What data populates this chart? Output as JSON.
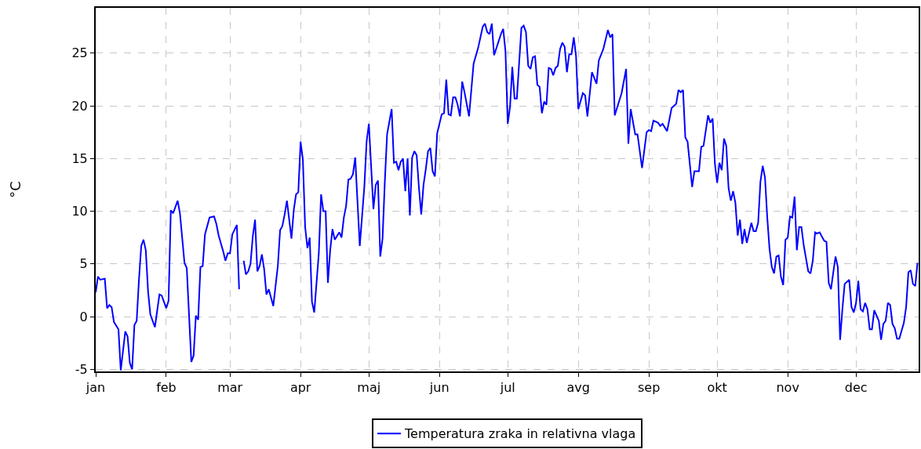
{
  "chart_data": {
    "type": "line",
    "ylabel": "°C",
    "x": [
      "--01-01",
      "--01-02",
      "--01-03",
      "--01-05",
      "--01-06",
      "--01-07",
      "--01-08",
      "--01-09",
      "--01-11",
      "--01-12",
      "--01-14",
      "--01-15",
      "--01-16",
      "--01-17",
      "--01-18",
      "--01-19",
      "--01-20",
      "--01-21",
      "--01-22",
      "--01-23",
      "--01-24",
      "--01-25",
      "--01-27",
      "--01-29",
      "--01-30",
      "--02-01",
      "--02-02",
      "--02-03",
      "--02-04",
      "--02-06",
      "--02-07",
      "--02-09",
      "--02-10",
      "--02-12",
      "--02-13",
      "--02-14",
      "--02-15",
      "--02-16",
      "--02-17",
      "--02-18",
      "--02-20",
      "--02-22",
      "--02-23",
      "--02-24",
      "--02-26",
      "--02-27",
      "--02-28",
      "--03-01",
      "--03-02",
      "--03-04",
      "--03-05",
      "--03-06",
      "--03-07",
      "--03-08",
      "--03-09",
      "--03-10",
      "--03-11",
      "--03-12",
      "--03-13",
      "--03-14",
      "--03-15",
      "--03-16",
      "--03-17",
      "--03-18",
      "--03-20",
      "--03-22",
      "--03-23",
      "--03-24",
      "--03-25",
      "--03-26",
      "--03-28",
      "--03-29",
      "--03-30",
      "--03-31",
      "--04-01",
      "--04-02",
      "--04-03",
      "--04-04",
      "--04-05",
      "--04-06",
      "--04-07",
      "--04-09",
      "--04-10",
      "--04-11",
      "--04-12",
      "--04-13",
      "--04-14",
      "--04-15",
      "--04-16",
      "--04-18",
      "--04-19",
      "--04-20",
      "--04-21",
      "--04-22",
      "--04-23",
      "--04-24",
      "--04-25",
      "--04-27",
      "--04-29",
      "--04-30",
      "--05-01",
      "--05-02",
      "--05-03",
      "--05-04",
      "--05-05",
      "--05-06",
      "--05-07",
      "--05-08",
      "--05-09",
      "--05-11",
      "--05-12",
      "--05-13",
      "--05-14",
      "--05-15",
      "--05-16",
      "--05-17",
      "--05-18",
      "--05-19",
      "--05-20",
      "--05-21",
      "--05-22",
      "--05-23",
      "--05-24",
      "--05-25",
      "--05-26",
      "--05-27",
      "--05-28",
      "--05-29",
      "--05-30",
      "--05-31",
      "--06-02",
      "--06-03",
      "--06-04",
      "--06-05",
      "--06-06",
      "--06-07",
      "--06-08",
      "--06-09",
      "--06-10",
      "--06-11",
      "--06-12",
      "--06-14",
      "--06-16",
      "--06-18",
      "--06-20",
      "--06-21",
      "--06-22",
      "--06-23",
      "--06-24",
      "--06-25",
      "--06-28",
      "--06-29",
      "--06-30",
      "--07-01",
      "--07-02",
      "--07-03",
      "--07-04",
      "--07-05",
      "--07-07",
      "--07-08",
      "--07-09",
      "--07-10",
      "--07-11",
      "--07-12",
      "--07-13",
      "--07-14",
      "--07-15",
      "--07-16",
      "--07-17",
      "--07-18",
      "--07-19",
      "--07-20",
      "--07-21",
      "--07-22",
      "--07-23",
      "--07-24",
      "--07-25",
      "--07-26",
      "--07-27",
      "--07-28",
      "--07-29",
      "--07-30",
      "--07-31",
      "--08-01",
      "--08-03",
      "--08-04",
      "--08-05",
      "--08-07",
      "--08-09",
      "--08-10",
      "--08-12",
      "--08-14",
      "--08-15",
      "--08-16",
      "--08-17",
      "--08-20",
      "--08-22",
      "--08-23",
      "--08-24",
      "--08-26",
      "--08-27",
      "--08-29",
      "--08-31",
      "--09-01",
      "--09-02",
      "--09-03",
      "--09-05",
      "--09-06",
      "--09-07",
      "--09-09",
      "--09-11",
      "--09-13",
      "--09-14",
      "--09-15",
      "--09-16",
      "--09-17",
      "--09-18",
      "--09-20",
      "--09-21",
      "--09-23",
      "--09-24",
      "--09-25",
      "--09-27",
      "--09-28",
      "--09-29",
      "--09-30",
      "--10-01",
      "--10-02",
      "--10-03",
      "--10-04",
      "--10-05",
      "--10-06",
      "--10-07",
      "--10-08",
      "--10-09",
      "--10-10",
      "--10-11",
      "--10-12",
      "--10-13",
      "--10-14",
      "--10-16",
      "--10-17",
      "--10-18",
      "--10-19",
      "--10-20",
      "--10-21",
      "--10-22",
      "--10-23",
      "--10-24",
      "--10-25",
      "--10-26",
      "--10-27",
      "--10-28",
      "--10-29",
      "--10-30",
      "--10-31",
      "--11-01",
      "--11-02",
      "--11-03",
      "--11-04",
      "--11-05",
      "--11-06",
      "--11-07",
      "--11-08",
      "--11-10",
      "--11-11",
      "--11-12",
      "--11-13",
      "--11-14",
      "--11-15",
      "--11-17",
      "--11-18",
      "--11-19",
      "--11-20",
      "--11-21",
      "--11-22",
      "--11-23",
      "--11-24",
      "--11-25",
      "--11-26",
      "--11-28",
      "--11-29",
      "--11-30",
      "--12-01",
      "--12-02",
      "--12-03",
      "--12-04",
      "--12-05",
      "--12-06",
      "--12-07",
      "--12-08",
      "--12-09",
      "--12-11",
      "--12-12",
      "--12-13",
      "--12-14",
      "--12-15",
      "--12-16",
      "--12-17",
      "--12-18",
      "--12-19",
      "--12-20",
      "--12-22",
      "--12-23",
      "--12-24",
      "--12-25",
      "--12-26",
      "--12-27",
      "--12-28"
    ],
    "series": [
      {
        "name": "Temperatura zraka in relativna vlaga",
        "color": "#0000ff",
        "values": [
          2.3,
          3.8,
          3.5,
          3.6,
          0.8,
          1.1,
          0.9,
          -0.5,
          -1.2,
          -5.1,
          -1.4,
          -1.9,
          -4.4,
          -5.0,
          -0.8,
          -0.4,
          3.5,
          6.7,
          7.3,
          6.3,
          2.4,
          0.2,
          -1.0,
          2.1,
          2.0,
          0.8,
          1.5,
          10.1,
          9.8,
          11.0,
          9.8,
          5.1,
          4.6,
          -4.3,
          -3.7,
          0.1,
          -0.3,
          4.7,
          4.8,
          7.8,
          9.4,
          9.5,
          8.8,
          7.7,
          6.2,
          5.3,
          6.0,
          6.0,
          7.8,
          8.7,
          2.6,
          null,
          5.3,
          4.0,
          4.3,
          5.0,
          7.6,
          9.2,
          4.3,
          4.8,
          5.9,
          4.5,
          2.1,
          2.6,
          1.0,
          4.8,
          8.2,
          8.6,
          9.7,
          11.0,
          7.4,
          10.1,
          11.6,
          11.8,
          16.6,
          14.9,
          8.5,
          6.5,
          7.5,
          1.4,
          0.4,
          6.0,
          11.6,
          10.0,
          10.0,
          3.2,
          6.3,
          8.3,
          7.3,
          8.0,
          7.5,
          9.4,
          10.5,
          13.0,
          13.1,
          13.5,
          15.1,
          6.7,
          12.3,
          16.6,
          18.3,
          14.2,
          10.2,
          12.5,
          12.9,
          5.7,
          7.4,
          12.8,
          17.3,
          19.7,
          14.6,
          14.7,
          13.9,
          14.7,
          15.0,
          11.9,
          15.0,
          9.6,
          15.1,
          15.7,
          15.3,
          12.2,
          9.7,
          12.5,
          14.0,
          15.7,
          16.0,
          13.8,
          13.3,
          17.4,
          19.2,
          19.3,
          22.5,
          19.2,
          19.1,
          20.8,
          20.8,
          20.1,
          19.0,
          22.3,
          21.3,
          19.0,
          24.0,
          25.5,
          27.5,
          27.8,
          27.0,
          26.8,
          27.8,
          24.8,
          26.8,
          27.3,
          25.2,
          18.3,
          19.9,
          23.7,
          20.7,
          20.7,
          27.4,
          27.6,
          27.0,
          23.8,
          23.5,
          24.6,
          24.7,
          22.0,
          21.8,
          19.3,
          20.4,
          20.1,
          23.6,
          23.5,
          22.9,
          23.6,
          23.8,
          25.4,
          26.0,
          25.6,
          23.2,
          24.9,
          24.9,
          26.5,
          24.7,
          19.7,
          21.2,
          21.0,
          19.0,
          23.2,
          22.1,
          24.3,
          25.4,
          27.2,
          26.5,
          26.8,
          19.1,
          21.2,
          23.5,
          16.4,
          19.7,
          17.3,
          17.3,
          14.1,
          17.5,
          17.7,
          17.6,
          18.6,
          18.4,
          18.1,
          18.3,
          17.6,
          19.8,
          20.2,
          21.5,
          21.3,
          21.5,
          17.0,
          16.6,
          12.3,
          13.8,
          13.8,
          16.1,
          16.2,
          19.1,
          18.4,
          18.8,
          14.5,
          12.7,
          14.6,
          13.9,
          16.9,
          16.2,
          12.2,
          11.0,
          11.9,
          10.8,
          7.7,
          9.2,
          6.9,
          8.3,
          7.0,
          8.9,
          8.1,
          8.1,
          8.9,
          12.8,
          14.3,
          13.2,
          9.4,
          6.4,
          4.7,
          4.1,
          5.7,
          5.8,
          3.8,
          3.0,
          7.3,
          7.5,
          9.5,
          9.4,
          11.4,
          6.3,
          8.5,
          8.5,
          6.8,
          4.3,
          4.1,
          5.3,
          8.0,
          7.9,
          8.0,
          7.2,
          7.1,
          3.2,
          2.6,
          4.2,
          5.7,
          4.7,
          -2.2,
          0.7,
          3.1,
          3.5,
          0.9,
          0.4,
          1.3,
          3.4,
          0.7,
          0.5,
          1.3,
          0.7,
          -1.2,
          -1.2,
          0.6,
          -0.4,
          -2.2,
          -0.7,
          -0.4,
          1.3,
          1.1,
          -0.7,
          -1.1,
          -2.1,
          -2.1,
          -0.6,
          0.9,
          4.2,
          4.4,
          3.1,
          2.9,
          5.1
        ]
      }
    ],
    "xlim": [
      "--01-01",
      "--12-28T12:00"
    ],
    "xticks": [
      {
        "value": "--01-01",
        "label": "jan"
      },
      {
        "value": "--02-01",
        "label": "feb"
      },
      {
        "value": "--03-01",
        "label": "mar"
      },
      {
        "value": "--04-01",
        "label": "apr"
      },
      {
        "value": "--05-01",
        "label": "maj"
      },
      {
        "value": "--06-01",
        "label": "jun"
      },
      {
        "value": "--07-01",
        "label": "jul"
      },
      {
        "value": "--08-01",
        "label": "avg"
      },
      {
        "value": "--09-01",
        "label": "sep"
      },
      {
        "value": "--10-01",
        "label": "okt"
      },
      {
        "value": "--11-01",
        "label": "nov"
      },
      {
        "value": "--12-01",
        "label": "dec"
      }
    ],
    "ylim": [
      -5.2,
      29.3
    ],
    "yticks": [
      -5,
      0,
      5,
      10,
      15,
      20,
      25
    ],
    "grid": true,
    "legend": "bottom",
    "marker": "none",
    "line_style": "solid"
  }
}
